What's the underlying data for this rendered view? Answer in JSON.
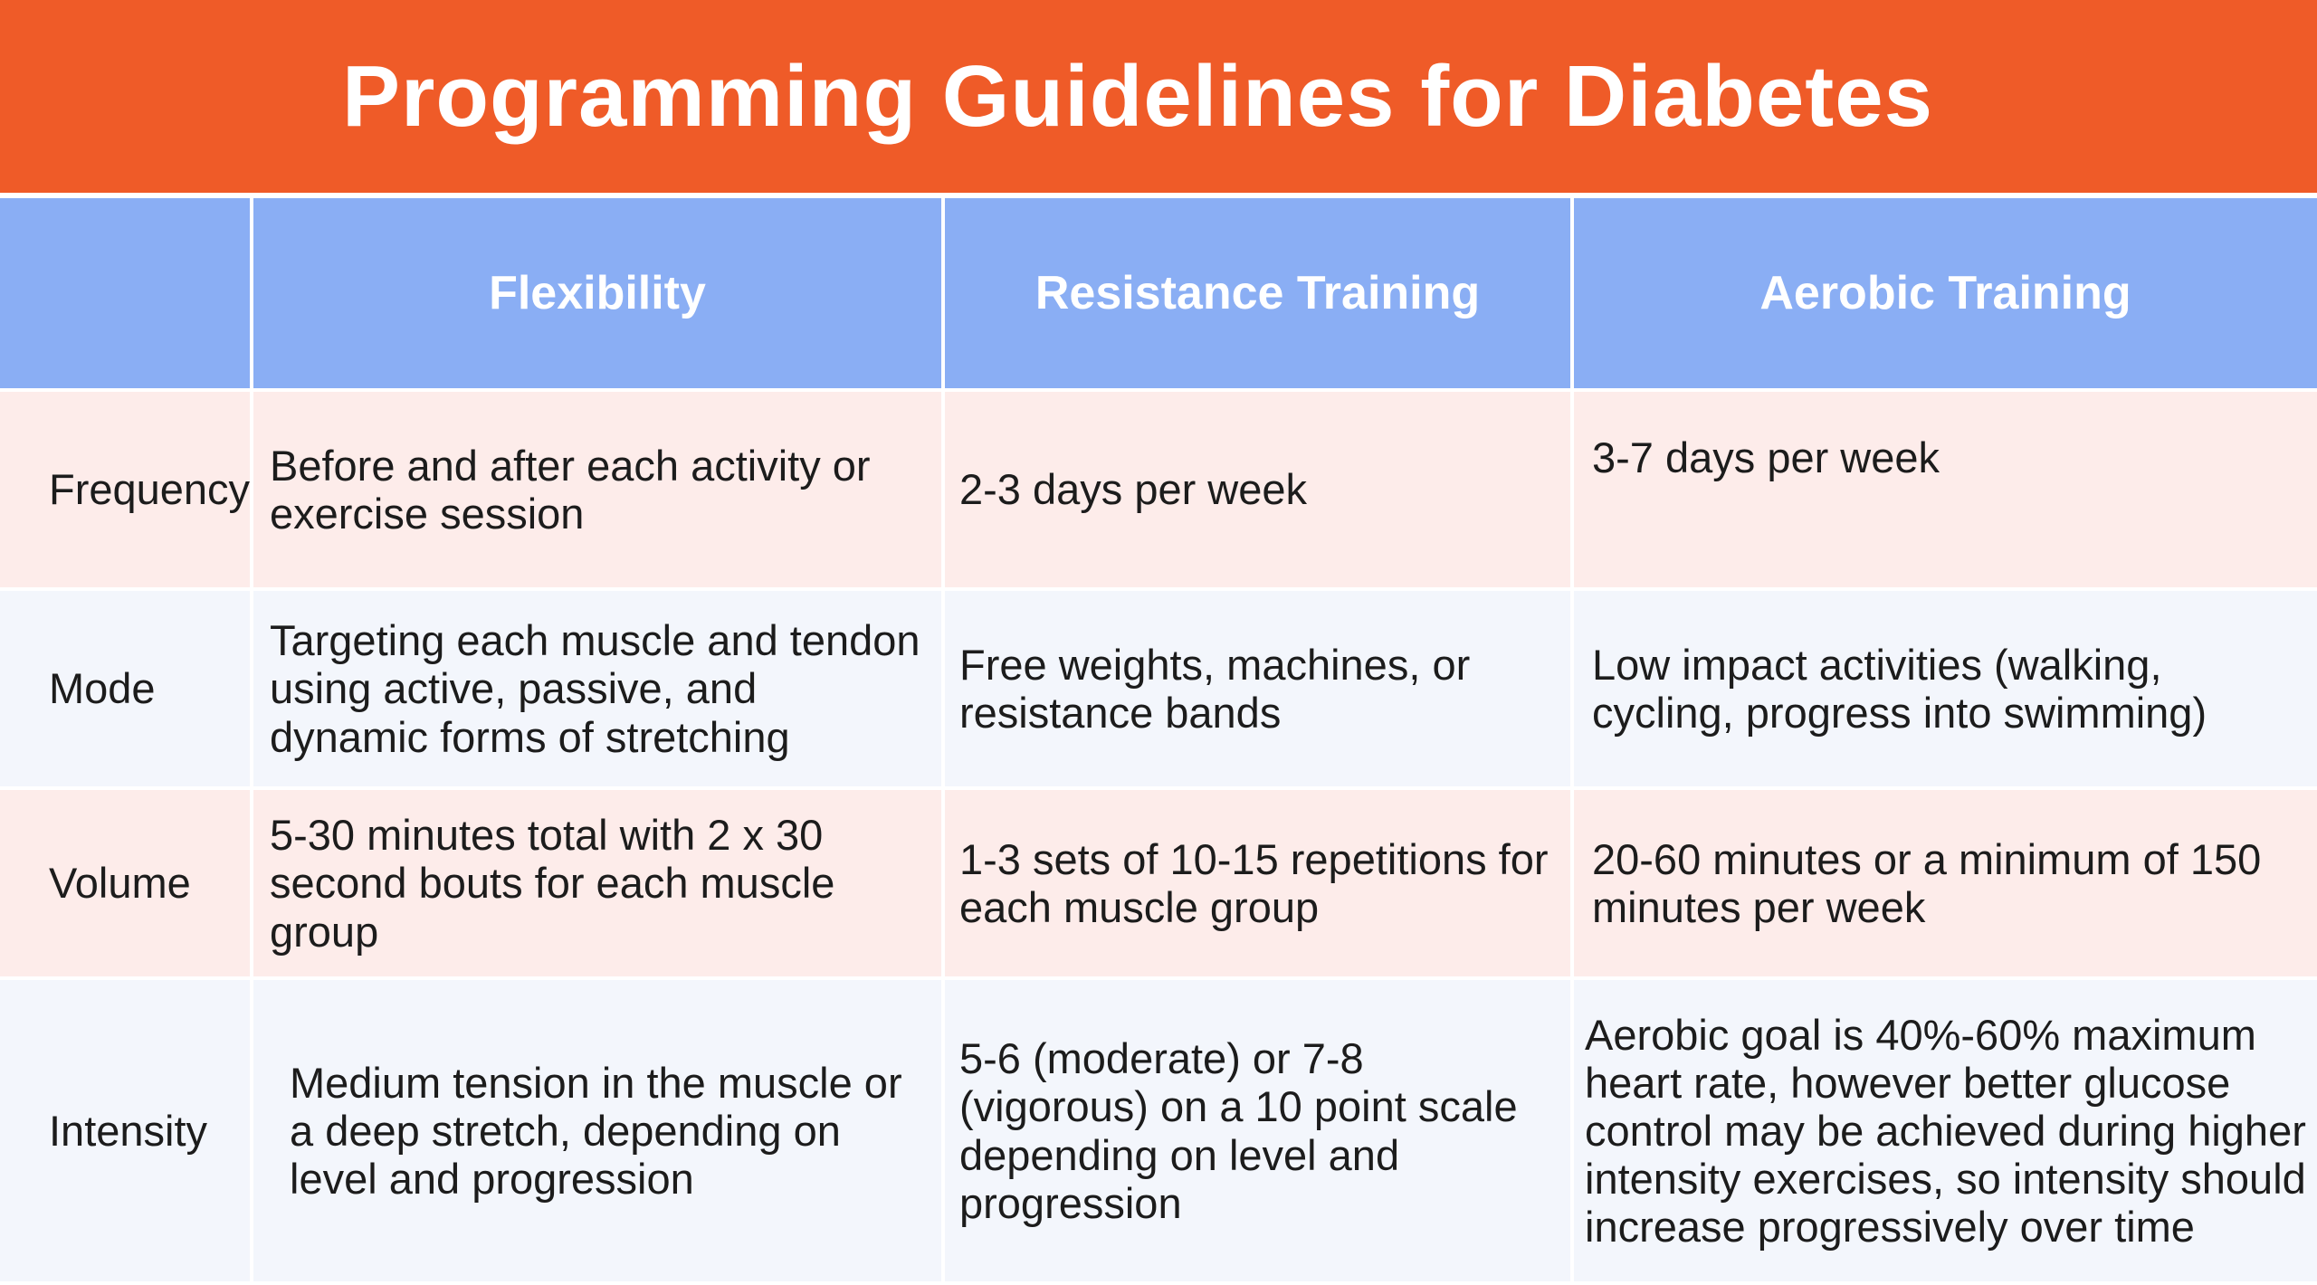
{
  "title": "Programming Guidelines for Diabetes",
  "colors": {
    "title_bar": "#ef5b28",
    "header_row": "#8aaef4",
    "row_pink": "#fdecea",
    "row_blue": "#f3f6fc"
  },
  "table": {
    "columns": [
      "",
      "Flexibility",
      "Resistance Training",
      "Aerobic Training"
    ],
    "rows": [
      {
        "label": "Frequency",
        "flexibility": "Before and after each activity or exercise session",
        "resistance": "2-3 days per week",
        "aerobic": "3-7 days per week"
      },
      {
        "label": "Mode",
        "flexibility": "Targeting each muscle and tendon using active, passive, and dynamic forms of stretching",
        "resistance": "Free weights, machines, or resistance bands",
        "aerobic": "Low impact activities (walking, cycling, progress into swimming)"
      },
      {
        "label": "Volume",
        "flexibility": "5-30 minutes total with 2 x 30 second bouts for each muscle group",
        "resistance": "1-3 sets of 10-15 repetitions for each muscle group",
        "aerobic": "20-60 minutes or a minimum of 150 minutes per week"
      },
      {
        "label": "Intensity",
        "flexibility": "Medium tension in the muscle or a deep stretch, depending on level and progression",
        "resistance": "5-6 (moderate) or 7-8 (vigorous) on a 10 point scale depending on level and progression",
        "aerobic": "Aerobic goal is 40%-60% maximum heart rate, however better glucose control may be achieved during higher intensity exercises, so intensity should increase progressively over time"
      }
    ]
  }
}
